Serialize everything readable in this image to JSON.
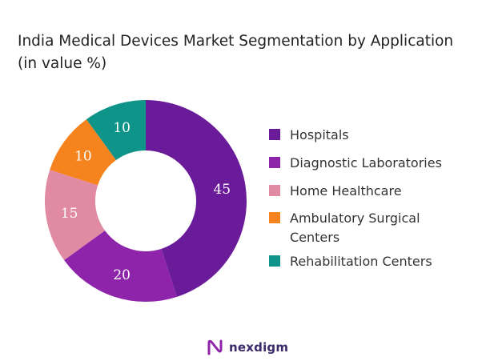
{
  "title_lines": [
    "India Medical Devices Market Segmentation by Application",
    "(in value %)"
  ],
  "chart_data": {
    "type": "pie",
    "donut": true,
    "title": "India Medical Devices Market Segmentation by Application (in value %)",
    "categories": [
      "Hospitals",
      "Diagnostic Laboratories",
      "Home Healthcare",
      "Ambulatory Surgical Centers",
      "Rehabilitation Centers"
    ],
    "values": [
      45,
      20,
      15,
      10,
      10
    ],
    "colors": [
      "#6a1b9a",
      "#8e24aa",
      "#e08aa3",
      "#f5841f",
      "#0e9488"
    ],
    "legend_position": "right",
    "start_angle": "top",
    "direction": "clockwise"
  },
  "legend": {
    "items": [
      {
        "label_lines": [
          "Hospitals"
        ]
      },
      {
        "label_lines": [
          "Diagnostic Laboratories"
        ]
      },
      {
        "label_lines": [
          "Home Healthcare"
        ]
      },
      {
        "label_lines": [
          "Ambulatory Surgical",
          "Centers"
        ]
      },
      {
        "label_lines": [
          "Rehabilitation Centers"
        ]
      }
    ]
  },
  "footer": {
    "brand": "nexdigm",
    "logo_icon": "nexdigm-logo-icon",
    "brand_color": "#3a2a6a"
  }
}
